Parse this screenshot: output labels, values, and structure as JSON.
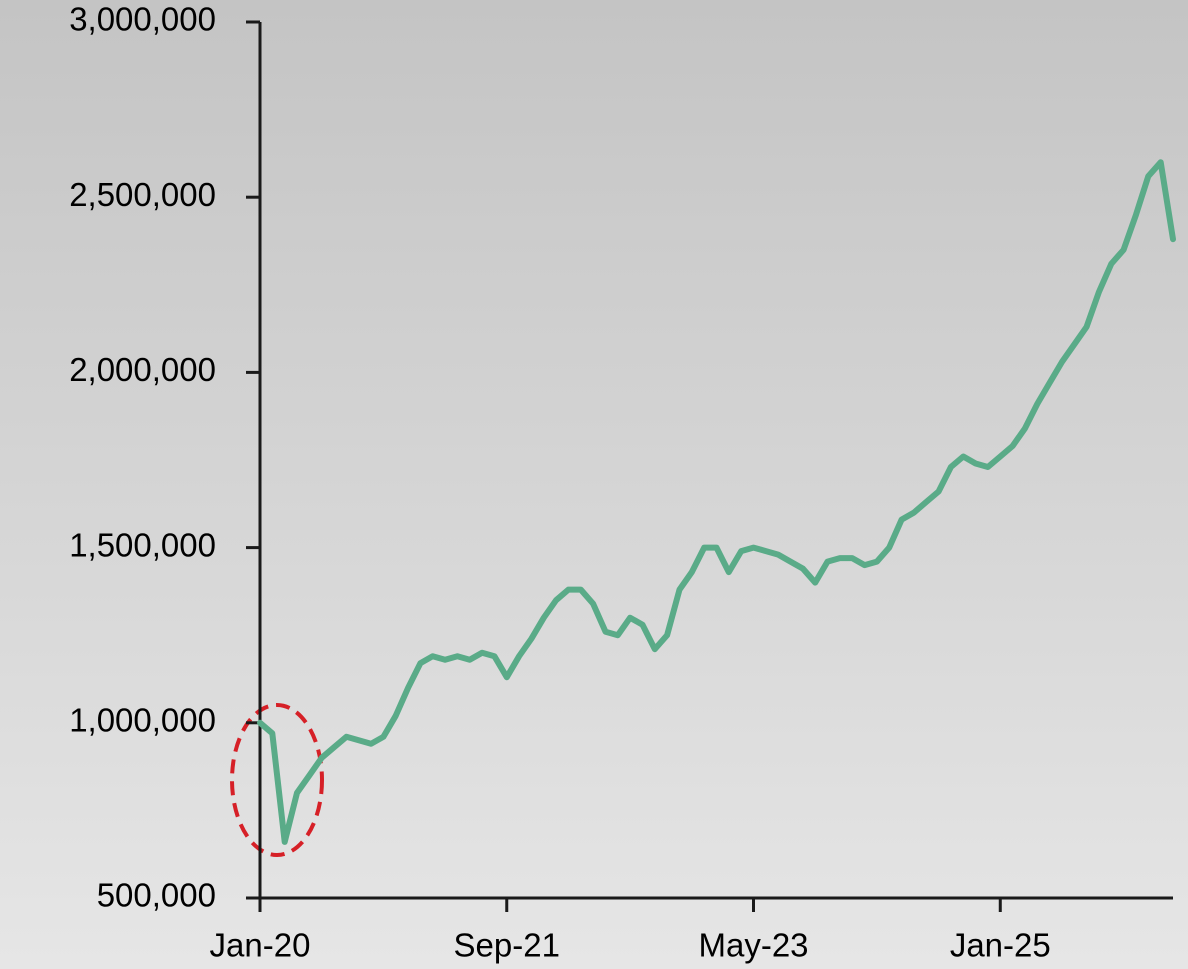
{
  "chart_data": {
    "type": "line",
    "x": [
      "2020-01",
      "2020-02",
      "2020-03",
      "2020-04",
      "2020-05",
      "2020-06",
      "2020-07",
      "2020-08",
      "2020-09",
      "2020-10",
      "2020-11",
      "2020-12",
      "2021-01",
      "2021-02",
      "2021-03",
      "2021-04",
      "2021-05",
      "2021-06",
      "2021-07",
      "2021-08",
      "2021-09",
      "2021-10",
      "2021-11",
      "2021-12",
      "2022-01",
      "2022-02",
      "2022-03",
      "2022-04",
      "2022-05",
      "2022-06",
      "2022-07",
      "2022-08",
      "2022-09",
      "2022-10",
      "2022-11",
      "2022-12",
      "2023-01",
      "2023-02",
      "2023-03",
      "2023-04",
      "2023-05",
      "2023-06",
      "2023-07",
      "2023-08",
      "2023-09",
      "2023-10",
      "2023-11",
      "2023-12",
      "2024-01",
      "2024-02",
      "2024-03",
      "2024-04",
      "2024-05",
      "2024-06",
      "2024-07",
      "2024-08",
      "2024-09",
      "2024-10",
      "2024-11",
      "2024-12",
      "2025-01",
      "2025-02",
      "2025-03",
      "2025-04",
      "2025-05",
      "2025-06",
      "2025-07",
      "2025-08",
      "2025-09",
      "2025-10",
      "2025-11",
      "2025-12",
      "2026-01",
      "2026-02",
      "2026-03"
    ],
    "series": [
      {
        "color": "#5aab88",
        "values": [
          1000000,
          970000,
          660000,
          800000,
          850000,
          900000,
          930000,
          960000,
          950000,
          940000,
          960000,
          1020000,
          1100000,
          1170000,
          1190000,
          1180000,
          1190000,
          1180000,
          1200000,
          1190000,
          1130000,
          1190000,
          1240000,
          1300000,
          1350000,
          1380000,
          1380000,
          1340000,
          1260000,
          1250000,
          1300000,
          1280000,
          1210000,
          1250000,
          1380000,
          1430000,
          1500000,
          1500000,
          1430000,
          1490000,
          1500000,
          1490000,
          1480000,
          1460000,
          1440000,
          1400000,
          1460000,
          1470000,
          1470000,
          1450000,
          1460000,
          1500000,
          1580000,
          1600000,
          1630000,
          1660000,
          1730000,
          1760000,
          1740000,
          1730000,
          1760000,
          1790000,
          1840000,
          1910000,
          1970000,
          2030000,
          2080000,
          2130000,
          2230000,
          2310000,
          2350000,
          2450000,
          2560000,
          2600000,
          2380000
        ]
      }
    ],
    "xlim": [
      "2020-01",
      "2026-03"
    ],
    "xticks": [
      {
        "value": "2020-01",
        "label": "Jan-20"
      },
      {
        "value": "2021-09",
        "label": "Sep-21"
      },
      {
        "value": "2023-05",
        "label": "May-23"
      },
      {
        "value": "2025-01",
        "label": "Jan-25"
      }
    ],
    "ylim": [
      500000,
      3000000
    ],
    "yticks": [
      {
        "value": 500000,
        "label": "500,000"
      },
      {
        "value": 1000000,
        "label": "1,000,000"
      },
      {
        "value": 1500000,
        "label": "1,500,000"
      },
      {
        "value": 2000000,
        "label": "2,000,000"
      },
      {
        "value": 2500000,
        "label": "2,500,000"
      },
      {
        "value": 3000000,
        "label": "3,000,000"
      }
    ]
  }
}
